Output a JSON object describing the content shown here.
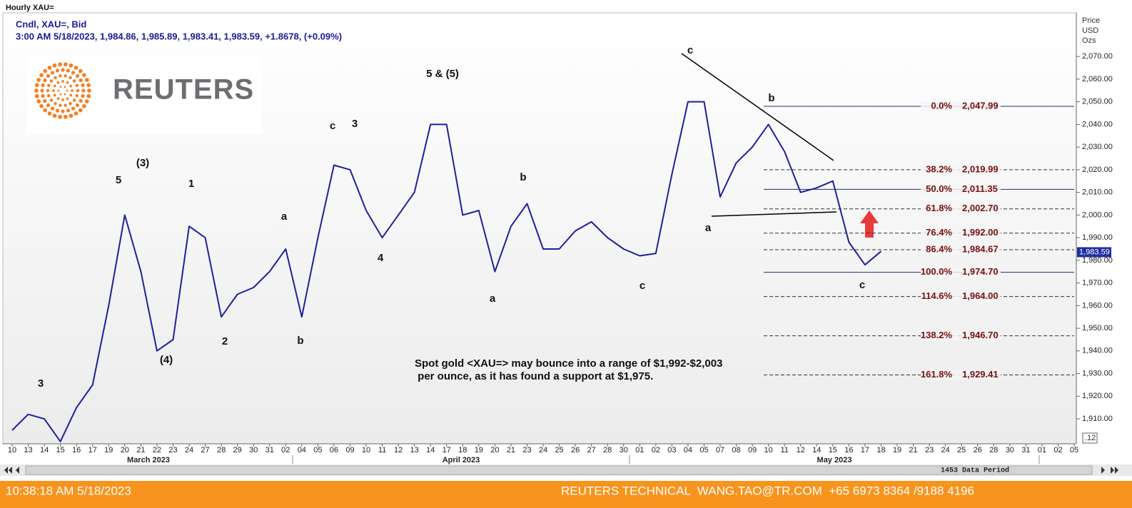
{
  "chart_data": {
    "type": "line",
    "title": "Hourly XAU=",
    "subtitle": "Cndl, XAU=, Bid",
    "ohlc_text": "3:00 AM 5/18/2023, 1,984.86, 1,985.89, 1,983.41, 1,983.59, +1.8678, (+0.09%)",
    "y_axis_title": [
      "Price",
      "USD",
      "Ozs"
    ],
    "color": "#1f1f9e",
    "categories": [
      "10",
      "13",
      "14",
      "15",
      "16",
      "17",
      "19",
      "20",
      "21",
      "22",
      "23",
      "24",
      "27",
      "28",
      "29",
      "30",
      "31",
      "02",
      "04",
      "05",
      "06",
      "09",
      "10",
      "11",
      "12",
      "13",
      "14",
      "17",
      "18",
      "19",
      "20",
      "21",
      "23",
      "24",
      "25",
      "26",
      "27",
      "28",
      "30",
      "01",
      "02",
      "03",
      "04",
      "05",
      "07",
      "08",
      "09",
      "10",
      "11",
      "12",
      "14",
      "15",
      "16",
      "17",
      "18",
      "19",
      "21",
      "23",
      "24",
      "25",
      "26",
      "28",
      "30",
      "31",
      "01",
      "02",
      "05"
    ],
    "values": [
      1905,
      1912,
      1910,
      1900,
      1915,
      1925,
      1960,
      2000,
      1975,
      1940,
      1945,
      1995,
      1990,
      1955,
      1965,
      1968,
      1975,
      1985,
      1955,
      1990,
      2022,
      2020,
      2002,
      1990,
      2000,
      2010,
      2040,
      2040,
      2000,
      2002,
      1975,
      1995,
      2005,
      1985,
      1985,
      1993,
      1997,
      1990,
      1985,
      1982,
      1983,
      2018,
      2050,
      2050,
      2008,
      2023,
      2030,
      2040,
      2028,
      2010,
      2012,
      2015,
      1988,
      1978,
      1984,
      null,
      null,
      null,
      null,
      null,
      null,
      null,
      null,
      null,
      null,
      null,
      null
    ],
    "months": [
      "March 2023",
      "April 2023",
      "May 2023"
    ],
    "ylim": [
      1899,
      2088
    ],
    "yticks": [
      {
        "value": 1910,
        "label": "1,910.00"
      },
      {
        "value": 1920,
        "label": "1,920.00"
      },
      {
        "value": 1930,
        "label": "1,930.00"
      },
      {
        "value": 1940,
        "label": "1,940.00"
      },
      {
        "value": 1950,
        "label": "1,950.00"
      },
      {
        "value": 1960,
        "label": "1,960.00"
      },
      {
        "value": 1970,
        "label": "1,970.00"
      },
      {
        "value": 1980,
        "label": "1,980.00"
      },
      {
        "value": 1990,
        "label": "1,990.00"
      },
      {
        "value": 2000,
        "label": "2,000.00"
      },
      {
        "value": 2010,
        "label": "2,010.00"
      },
      {
        "value": 2020,
        "label": "2,020.00"
      },
      {
        "value": 2030,
        "label": "2,030.00"
      },
      {
        "value": 2040,
        "label": "2,040.00"
      },
      {
        "value": 2050,
        "label": "2,050.00"
      },
      {
        "value": 2060,
        "label": "2,060.00"
      },
      {
        "value": 2070,
        "label": "2,070.00"
      }
    ],
    "grid": false,
    "last_price": {
      "value": 1983.59,
      "label": "1,983.59"
    },
    "fib_levels": [
      {
        "ratio": "0.0%",
        "value": 2047.99,
        "label": "2,047.99"
      },
      {
        "ratio": "38.2%",
        "value": 2019.99,
        "label": "2,019.99"
      },
      {
        "ratio": "50.0%",
        "value": 2011.35,
        "label": "2,011.35"
      },
      {
        "ratio": "61.8%",
        "value": 2002.7,
        "label": "2,002.70"
      },
      {
        "ratio": "76.4%",
        "value": 1992.0,
        "label": "1,992.00"
      },
      {
        "ratio": "86.4%",
        "value": 1984.67,
        "label": "1,984.67"
      },
      {
        "ratio": "100.0%",
        "value": 1974.7,
        "label": "1,974.70"
      },
      {
        "ratio": "114.6%",
        "value": 1964.0,
        "label": "1,964.00"
      },
      {
        "ratio": "138.2%",
        "value": 1946.7,
        "label": "1,946.70"
      },
      {
        "ratio": "161.8%",
        "value": 1929.41,
        "label": "1,929.41"
      }
    ],
    "wave_labels": [
      "3",
      "5",
      "(3)",
      "1",
      "(4)",
      "2",
      "a",
      "b",
      "c",
      "3",
      "4",
      "5 & (5)",
      "b",
      "a",
      "c",
      "c",
      "b",
      "a",
      "c"
    ],
    "annotation": [
      "Spot gold <XAU=> may bounce into a range of $1,992-$2,003",
      " per ounce, as it has found a support at $1,975."
    ],
    "axis_corner": ".12",
    "data_period": "1453 Data Period"
  },
  "logo": "REUTERS",
  "footer": {
    "time": "10:38:18 AM 5/18/2023",
    "contact": "REUTERS TECHNICAL  WANG.TAO@TR.COM  +65 6973 8364 /9188 4196"
  }
}
